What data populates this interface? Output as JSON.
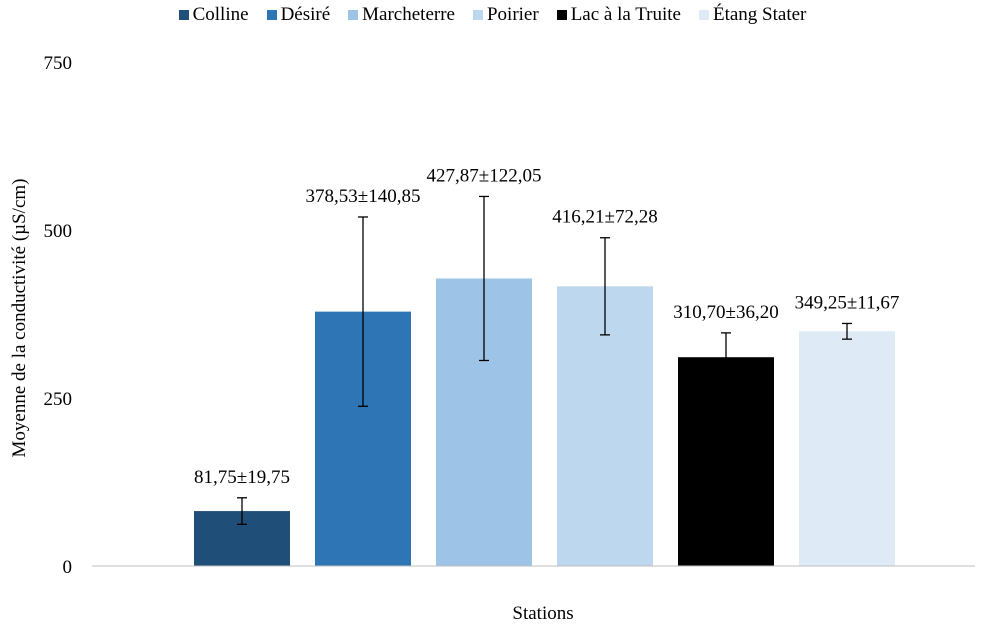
{
  "chart_data": {
    "type": "bar",
    "title": "",
    "xlabel": "Stations",
    "ylabel": "Moyenne de la conductivité (µS/cm)",
    "ylim": [
      0,
      750
    ],
    "yticks": [
      "0",
      "250",
      "500",
      "750"
    ],
    "grid": false,
    "legend_position": "top",
    "categories": [
      "Colline",
      "Désiré",
      "Marcheterre",
      "Poirier",
      "Lac à la Truite",
      "Étang Stater"
    ],
    "values": [
      81.75,
      378.53,
      427.87,
      416.21,
      310.7,
      349.25
    ],
    "errors": [
      19.75,
      140.85,
      122.05,
      72.28,
      36.2,
      11.67
    ],
    "data_labels": [
      "81,75±19,75",
      "378,53±140,85",
      "427,87±122,05",
      "416,21±72,28",
      "310,70±36,20",
      "349,25±11,67"
    ],
    "colors": [
      "#1f4e79",
      "#2e75b6",
      "#9dc3e6",
      "#bdd7ee",
      "#000000",
      "#deebf7"
    ]
  }
}
